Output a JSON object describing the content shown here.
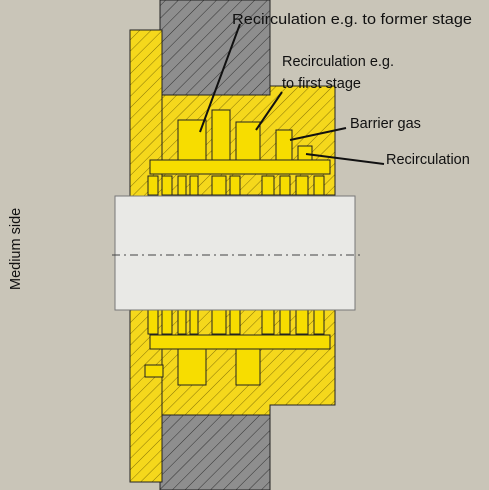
{
  "labels": {
    "former_stage": "Recirculation e.g. to former stage",
    "first_stage": [
      "Recirculation e.g.",
      "to first stage"
    ],
    "barrier_gas": "Barrier gas",
    "recirculation": "Recirculation"
  },
  "side_label": "Medium side"
}
